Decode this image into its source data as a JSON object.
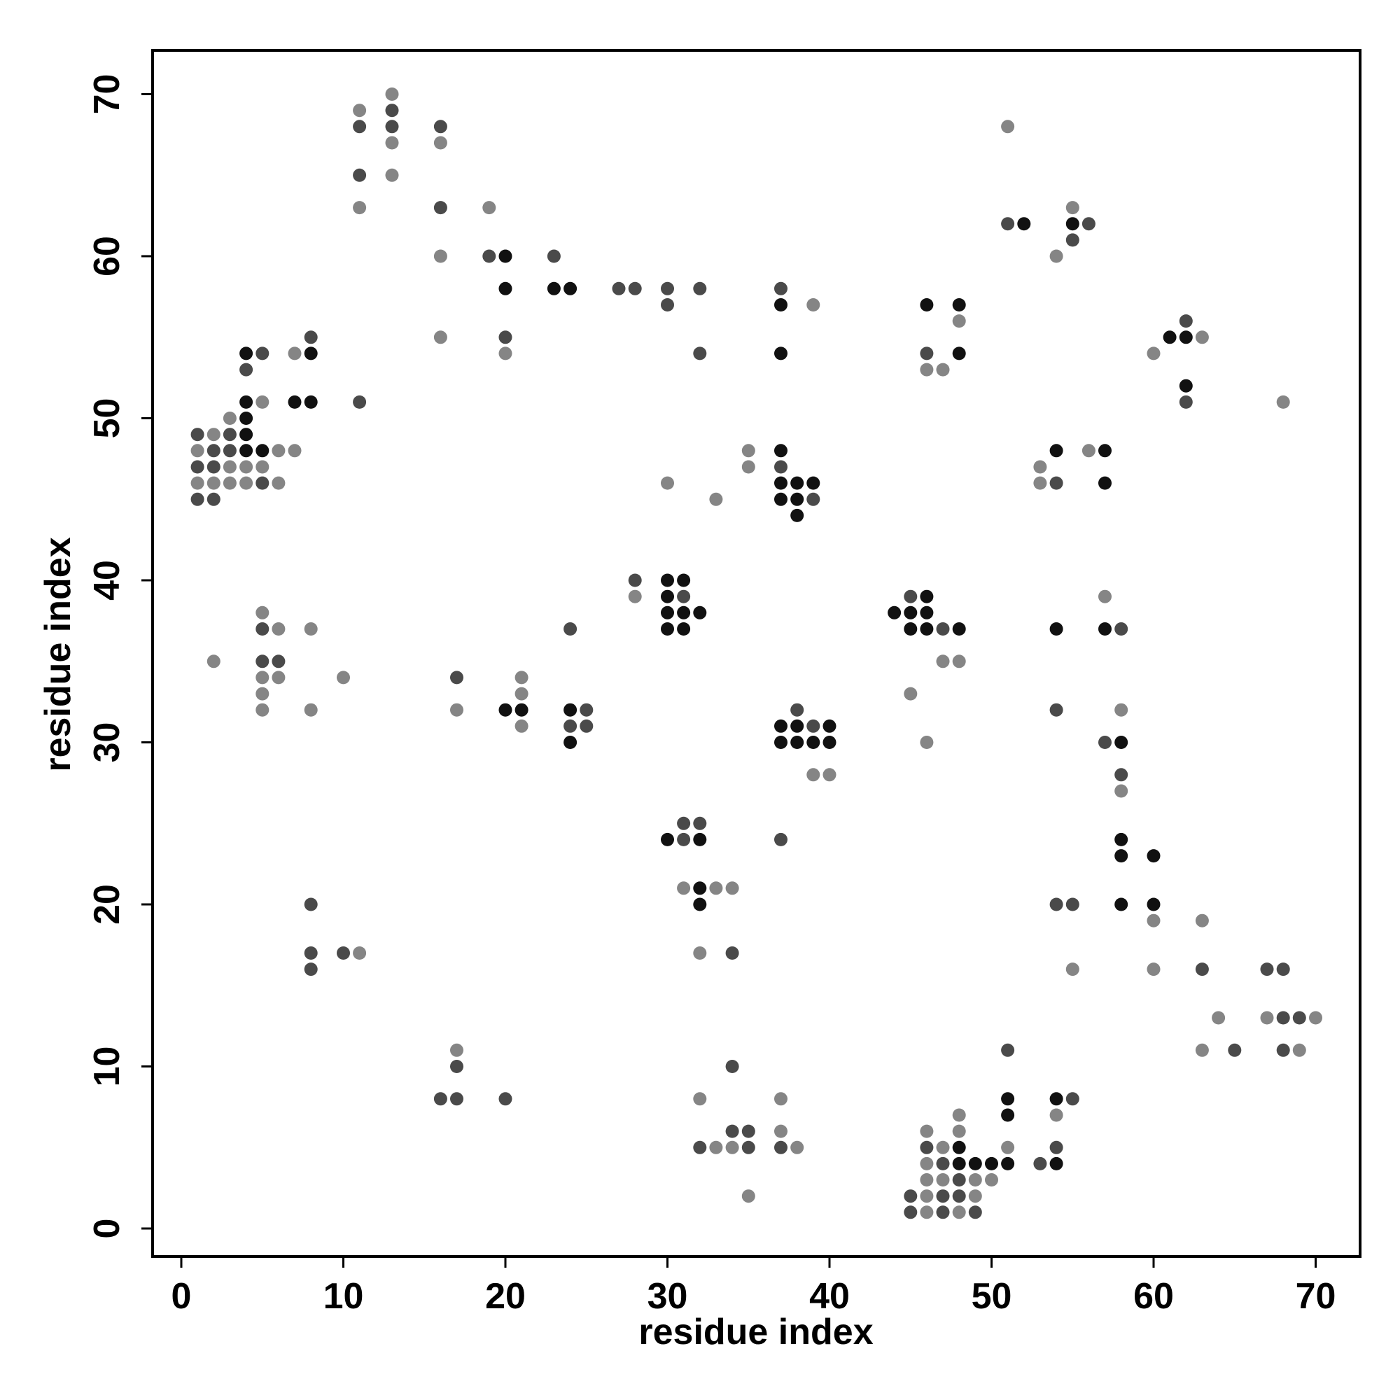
{
  "chart_data": {
    "type": "scatter",
    "title": "",
    "xlabel": "residue index",
    "ylabel": "residue index",
    "xlim": [
      -2,
      72
    ],
    "ylim": [
      -2,
      73
    ],
    "xticks": [
      0,
      10,
      20,
      30,
      40,
      50,
      60,
      70
    ],
    "yticks": [
      0,
      10,
      20,
      30,
      40,
      50,
      60,
      70
    ],
    "grid": false,
    "legend": "none",
    "colors": {
      "dark": "#111111",
      "medium": "#4a4a4a",
      "light": "#858585"
    },
    "points": [
      [
        1,
        49,
        "medium"
      ],
      [
        1,
        48,
        "light"
      ],
      [
        1,
        47,
        "medium"
      ],
      [
        1,
        46,
        "light"
      ],
      [
        1,
        45,
        "medium"
      ],
      [
        2,
        49,
        "light"
      ],
      [
        2,
        48,
        "medium"
      ],
      [
        2,
        47,
        "medium"
      ],
      [
        2,
        46,
        "light"
      ],
      [
        2,
        45,
        "medium"
      ],
      [
        3,
        50,
        "light"
      ],
      [
        3,
        49,
        "medium"
      ],
      [
        3,
        48,
        "medium"
      ],
      [
        3,
        47,
        "light"
      ],
      [
        3,
        46,
        "light"
      ],
      [
        4,
        54,
        "dark"
      ],
      [
        4,
        53,
        "medium"
      ],
      [
        4,
        51,
        "dark"
      ],
      [
        4,
        50,
        "dark"
      ],
      [
        4,
        49,
        "dark"
      ],
      [
        4,
        48,
        "dark"
      ],
      [
        4,
        47,
        "light"
      ],
      [
        4,
        46,
        "light"
      ],
      [
        5,
        54,
        "medium"
      ],
      [
        5,
        51,
        "light"
      ],
      [
        5,
        48,
        "dark"
      ],
      [
        5,
        47,
        "light"
      ],
      [
        5,
        46,
        "medium"
      ],
      [
        6,
        48,
        "light"
      ],
      [
        6,
        46,
        "light"
      ],
      [
        7,
        54,
        "light"
      ],
      [
        7,
        51,
        "dark"
      ],
      [
        7,
        48,
        "light"
      ],
      [
        8,
        55,
        "medium"
      ],
      [
        8,
        54,
        "dark"
      ],
      [
        8,
        51,
        "dark"
      ],
      [
        11,
        69,
        "light"
      ],
      [
        11,
        68,
        "medium"
      ],
      [
        11,
        65,
        "medium"
      ],
      [
        11,
        63,
        "light"
      ],
      [
        11,
        51,
        "medium"
      ],
      [
        13,
        70,
        "light"
      ],
      [
        13,
        69,
        "medium"
      ],
      [
        13,
        68,
        "medium"
      ],
      [
        13,
        67,
        "light"
      ],
      [
        13,
        65,
        "light"
      ],
      [
        16,
        68,
        "medium"
      ],
      [
        16,
        67,
        "light"
      ],
      [
        16,
        63,
        "medium"
      ],
      [
        16,
        60,
        "light"
      ],
      [
        16,
        55,
        "light"
      ],
      [
        19,
        63,
        "light"
      ],
      [
        19,
        60,
        "medium"
      ],
      [
        20,
        60,
        "dark"
      ],
      [
        20,
        58,
        "dark"
      ],
      [
        20,
        55,
        "medium"
      ],
      [
        20,
        54,
        "light"
      ],
      [
        23,
        60,
        "medium"
      ],
      [
        23,
        58,
        "dark"
      ],
      [
        24,
        58,
        "dark"
      ],
      [
        27,
        58,
        "medium"
      ],
      [
        28,
        58,
        "medium"
      ],
      [
        30,
        58,
        "medium"
      ],
      [
        30,
        57,
        "medium"
      ],
      [
        32,
        58,
        "medium"
      ],
      [
        32,
        54,
        "medium"
      ],
      [
        37,
        58,
        "medium"
      ],
      [
        37,
        57,
        "dark"
      ],
      [
        37,
        54,
        "dark"
      ],
      [
        39,
        57,
        "light"
      ],
      [
        46,
        57,
        "dark"
      ],
      [
        46,
        54,
        "medium"
      ],
      [
        46,
        53,
        "light"
      ],
      [
        47,
        53,
        "light"
      ],
      [
        48,
        57,
        "dark"
      ],
      [
        48,
        56,
        "light"
      ],
      [
        48,
        54,
        "dark"
      ],
      [
        51,
        68,
        "light"
      ],
      [
        51,
        62,
        "medium"
      ],
      [
        52,
        62,
        "dark"
      ],
      [
        54,
        60,
        "light"
      ],
      [
        55,
        63,
        "light"
      ],
      [
        55,
        62,
        "dark"
      ],
      [
        55,
        61,
        "medium"
      ],
      [
        56,
        62,
        "medium"
      ],
      [
        60,
        54,
        "light"
      ],
      [
        61,
        55,
        "dark"
      ],
      [
        62,
        56,
        "medium"
      ],
      [
        62,
        55,
        "dark"
      ],
      [
        62,
        52,
        "dark"
      ],
      [
        62,
        51,
        "medium"
      ],
      [
        63,
        55,
        "light"
      ],
      [
        68,
        51,
        "light"
      ],
      [
        30,
        46,
        "light"
      ],
      [
        33,
        45,
        "light"
      ],
      [
        35,
        48,
        "light"
      ],
      [
        35,
        47,
        "light"
      ],
      [
        37,
        48,
        "dark"
      ],
      [
        37,
        47,
        "medium"
      ],
      [
        37,
        46,
        "dark"
      ],
      [
        37,
        45,
        "dark"
      ],
      [
        38,
        46,
        "dark"
      ],
      [
        38,
        45,
        "dark"
      ],
      [
        38,
        44,
        "dark"
      ],
      [
        39,
        46,
        "dark"
      ],
      [
        39,
        45,
        "medium"
      ],
      [
        53,
        47,
        "light"
      ],
      [
        53,
        46,
        "light"
      ],
      [
        54,
        48,
        "dark"
      ],
      [
        54,
        46,
        "medium"
      ],
      [
        56,
        48,
        "light"
      ],
      [
        57,
        48,
        "dark"
      ],
      [
        57,
        46,
        "dark"
      ],
      [
        28,
        40,
        "medium"
      ],
      [
        28,
        39,
        "light"
      ],
      [
        30,
        40,
        "dark"
      ],
      [
        30,
        39,
        "dark"
      ],
      [
        30,
        38,
        "dark"
      ],
      [
        30,
        37,
        "dark"
      ],
      [
        31,
        40,
        "dark"
      ],
      [
        31,
        39,
        "medium"
      ],
      [
        31,
        38,
        "dark"
      ],
      [
        31,
        37,
        "dark"
      ],
      [
        32,
        38,
        "dark"
      ],
      [
        44,
        38,
        "dark"
      ],
      [
        45,
        39,
        "medium"
      ],
      [
        45,
        38,
        "dark"
      ],
      [
        45,
        37,
        "dark"
      ],
      [
        46,
        39,
        "dark"
      ],
      [
        46,
        38,
        "dark"
      ],
      [
        46,
        37,
        "dark"
      ],
      [
        47,
        37,
        "medium"
      ],
      [
        48,
        37,
        "dark"
      ],
      [
        47,
        35,
        "light"
      ],
      [
        48,
        35,
        "light"
      ],
      [
        54,
        37,
        "dark"
      ],
      [
        57,
        39,
        "light"
      ],
      [
        57,
        37,
        "dark"
      ],
      [
        58,
        37,
        "medium"
      ],
      [
        2,
        35,
        "light"
      ],
      [
        5,
        38,
        "light"
      ],
      [
        5,
        37,
        "medium"
      ],
      [
        5,
        35,
        "medium"
      ],
      [
        5,
        34,
        "light"
      ],
      [
        5,
        33,
        "light"
      ],
      [
        5,
        32,
        "light"
      ],
      [
        6,
        37,
        "light"
      ],
      [
        6,
        35,
        "medium"
      ],
      [
        6,
        34,
        "light"
      ],
      [
        8,
        37,
        "light"
      ],
      [
        8,
        32,
        "light"
      ],
      [
        10,
        34,
        "light"
      ],
      [
        17,
        34,
        "medium"
      ],
      [
        17,
        32,
        "light"
      ],
      [
        20,
        32,
        "dark"
      ],
      [
        21,
        34,
        "light"
      ],
      [
        21,
        33,
        "light"
      ],
      [
        21,
        32,
        "dark"
      ],
      [
        21,
        31,
        "light"
      ],
      [
        24,
        37,
        "medium"
      ],
      [
        24,
        32,
        "dark"
      ],
      [
        24,
        31,
        "medium"
      ],
      [
        24,
        30,
        "dark"
      ],
      [
        25,
        32,
        "medium"
      ],
      [
        25,
        31,
        "medium"
      ],
      [
        37,
        31,
        "dark"
      ],
      [
        37,
        30,
        "dark"
      ],
      [
        38,
        32,
        "medium"
      ],
      [
        38,
        31,
        "dark"
      ],
      [
        38,
        30,
        "dark"
      ],
      [
        39,
        31,
        "medium"
      ],
      [
        39,
        30,
        "dark"
      ],
      [
        39,
        28,
        "light"
      ],
      [
        40,
        31,
        "dark"
      ],
      [
        40,
        30,
        "dark"
      ],
      [
        40,
        28,
        "light"
      ],
      [
        45,
        33,
        "light"
      ],
      [
        46,
        30,
        "light"
      ],
      [
        54,
        32,
        "medium"
      ],
      [
        57,
        30,
        "medium"
      ],
      [
        58,
        32,
        "light"
      ],
      [
        58,
        30,
        "dark"
      ],
      [
        58,
        28,
        "medium"
      ],
      [
        58,
        27,
        "light"
      ],
      [
        30,
        24,
        "dark"
      ],
      [
        31,
        25,
        "medium"
      ],
      [
        31,
        24,
        "medium"
      ],
      [
        32,
        25,
        "medium"
      ],
      [
        32,
        24,
        "dark"
      ],
      [
        31,
        21,
        "light"
      ],
      [
        32,
        21,
        "dark"
      ],
      [
        32,
        20,
        "dark"
      ],
      [
        33,
        21,
        "light"
      ],
      [
        34,
        21,
        "light"
      ],
      [
        32,
        17,
        "light"
      ],
      [
        34,
        17,
        "medium"
      ],
      [
        37,
        24,
        "medium"
      ],
      [
        58,
        24,
        "dark"
      ],
      [
        58,
        23,
        "dark"
      ],
      [
        58,
        20,
        "dark"
      ],
      [
        60,
        23,
        "dark"
      ],
      [
        60,
        20,
        "dark"
      ],
      [
        60,
        19,
        "light"
      ],
      [
        60,
        16,
        "light"
      ],
      [
        54,
        20,
        "medium"
      ],
      [
        55,
        20,
        "medium"
      ],
      [
        55,
        16,
        "light"
      ],
      [
        63,
        19,
        "light"
      ],
      [
        63,
        16,
        "medium"
      ],
      [
        8,
        20,
        "medium"
      ],
      [
        8,
        17,
        "medium"
      ],
      [
        8,
        16,
        "medium"
      ],
      [
        10,
        17,
        "medium"
      ],
      [
        11,
        17,
        "light"
      ],
      [
        64,
        13,
        "light"
      ],
      [
        65,
        11,
        "medium"
      ],
      [
        63,
        11,
        "light"
      ],
      [
        67,
        16,
        "medium"
      ],
      [
        67,
        13,
        "light"
      ],
      [
        68,
        16,
        "medium"
      ],
      [
        68,
        13,
        "medium"
      ],
      [
        68,
        11,
        "medium"
      ],
      [
        69,
        13,
        "medium"
      ],
      [
        69,
        11,
        "light"
      ],
      [
        70,
        13,
        "light"
      ],
      [
        16,
        8,
        "medium"
      ],
      [
        17,
        11,
        "light"
      ],
      [
        17,
        10,
        "medium"
      ],
      [
        17,
        8,
        "medium"
      ],
      [
        20,
        8,
        "medium"
      ],
      [
        32,
        8,
        "light"
      ],
      [
        32,
        5,
        "medium"
      ],
      [
        33,
        5,
        "light"
      ],
      [
        34,
        10,
        "medium"
      ],
      [
        34,
        6,
        "medium"
      ],
      [
        34,
        5,
        "light"
      ],
      [
        35,
        6,
        "medium"
      ],
      [
        35,
        5,
        "medium"
      ],
      [
        35,
        2,
        "light"
      ],
      [
        37,
        8,
        "light"
      ],
      [
        37,
        6,
        "light"
      ],
      [
        37,
        5,
        "medium"
      ],
      [
        38,
        5,
        "light"
      ],
      [
        45,
        2,
        "medium"
      ],
      [
        45,
        1,
        "medium"
      ],
      [
        46,
        6,
        "light"
      ],
      [
        46,
        5,
        "medium"
      ],
      [
        46,
        4,
        "light"
      ],
      [
        46,
        3,
        "light"
      ],
      [
        46,
        2,
        "light"
      ],
      [
        46,
        1,
        "light"
      ],
      [
        47,
        5,
        "light"
      ],
      [
        47,
        4,
        "medium"
      ],
      [
        47,
        3,
        "light"
      ],
      [
        47,
        2,
        "medium"
      ],
      [
        47,
        1,
        "medium"
      ],
      [
        48,
        7,
        "light"
      ],
      [
        48,
        6,
        "light"
      ],
      [
        48,
        5,
        "dark"
      ],
      [
        48,
        4,
        "dark"
      ],
      [
        48,
        3,
        "medium"
      ],
      [
        48,
        2,
        "medium"
      ],
      [
        48,
        1,
        "light"
      ],
      [
        49,
        4,
        "dark"
      ],
      [
        49,
        3,
        "light"
      ],
      [
        49,
        2,
        "light"
      ],
      [
        49,
        1,
        "medium"
      ],
      [
        50,
        4,
        "dark"
      ],
      [
        50,
        3,
        "light"
      ],
      [
        51,
        11,
        "medium"
      ],
      [
        51,
        8,
        "dark"
      ],
      [
        51,
        7,
        "dark"
      ],
      [
        51,
        5,
        "light"
      ],
      [
        51,
        4,
        "dark"
      ],
      [
        53,
        4,
        "medium"
      ],
      [
        54,
        8,
        "dark"
      ],
      [
        54,
        7,
        "light"
      ],
      [
        54,
        5,
        "medium"
      ],
      [
        54,
        4,
        "dark"
      ],
      [
        55,
        8,
        "medium"
      ]
    ]
  }
}
